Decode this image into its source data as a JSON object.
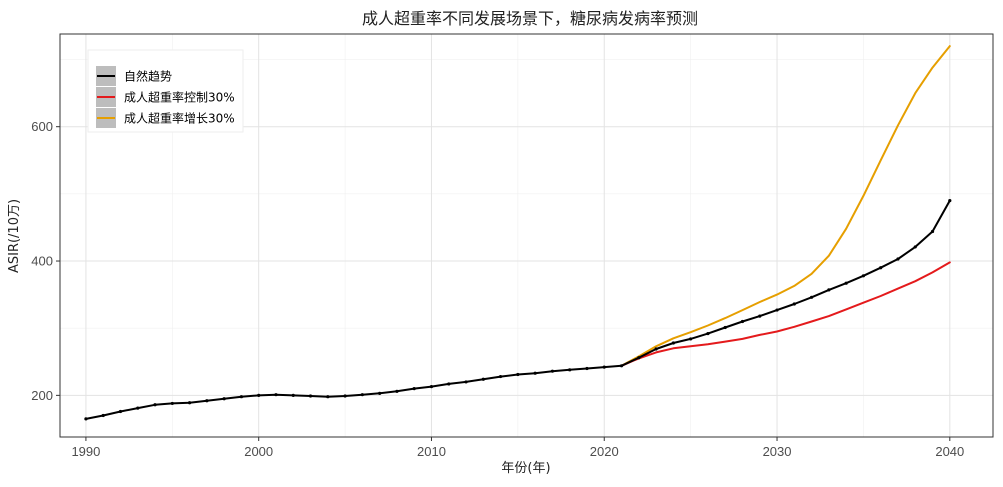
{
  "chart_data": {
    "type": "line",
    "title": "成人超重率不同发展场景下，糖尿病发病率预测",
    "xlabel": "年份(年)",
    "ylabel": "ASIR(/10万)",
    "xlim": [
      1988.5,
      2042.5
    ],
    "ylim": [
      138,
      738
    ],
    "x_ticks": [
      1990,
      2000,
      2010,
      2020,
      2030,
      2040
    ],
    "y_ticks": [
      200,
      400,
      600
    ],
    "grid": true,
    "legend_position": "top-left",
    "series": [
      {
        "name": "自然趋势",
        "color": "#000000",
        "markers": true,
        "x": [
          1990,
          1991,
          1992,
          1993,
          1994,
          1995,
          1996,
          1997,
          1998,
          1999,
          2000,
          2001,
          2002,
          2003,
          2004,
          2005,
          2006,
          2007,
          2008,
          2009,
          2010,
          2011,
          2012,
          2013,
          2014,
          2015,
          2016,
          2017,
          2018,
          2019,
          2020,
          2021,
          2022,
          2023,
          2024,
          2025,
          2026,
          2027,
          2028,
          2029,
          2030,
          2031,
          2032,
          2033,
          2034,
          2035,
          2036,
          2037,
          2038,
          2039,
          2040
        ],
        "values": [
          165,
          170,
          176,
          181,
          186,
          188,
          189,
          192,
          195,
          198,
          200,
          201,
          200,
          199,
          198,
          199,
          201,
          203,
          206,
          210,
          213,
          217,
          220,
          224,
          228,
          231,
          233,
          236,
          238,
          240,
          242,
          244,
          256,
          269,
          278,
          284,
          292,
          301,
          310,
          318,
          327,
          336,
          346,
          357,
          367,
          378,
          390,
          403,
          421,
          444,
          490
        ]
      },
      {
        "name": "成人超重率控制30%",
        "color": "#e41a1c",
        "markers": false,
        "x": [
          2021,
          2022,
          2023,
          2024,
          2025,
          2026,
          2027,
          2028,
          2029,
          2030,
          2031,
          2032,
          2033,
          2034,
          2035,
          2036,
          2037,
          2038,
          2039,
          2040
        ],
        "values": [
          244,
          255,
          264,
          270,
          273,
          276,
          280,
          284,
          290,
          295,
          302,
          310,
          318,
          328,
          338,
          348,
          359,
          370,
          383,
          398
        ]
      },
      {
        "name": "成人超重率增长30%",
        "color": "#e69f00",
        "markers": false,
        "x": [
          2021,
          2022,
          2023,
          2024,
          2025,
          2026,
          2027,
          2028,
          2029,
          2030,
          2031,
          2032,
          2033,
          2034,
          2035,
          2036,
          2037,
          2038,
          2039,
          2040
        ],
        "values": [
          244,
          258,
          273,
          285,
          294,
          304,
          315,
          327,
          339,
          350,
          363,
          381,
          408,
          448,
          497,
          550,
          602,
          650,
          688,
          720
        ]
      }
    ]
  }
}
